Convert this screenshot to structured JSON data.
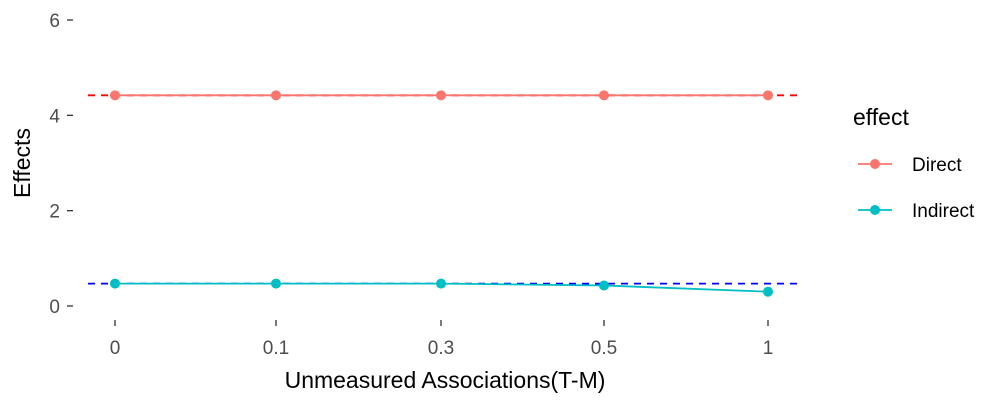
{
  "chart_data": {
    "type": "line",
    "categories": [
      "0",
      "0.1",
      "0.3",
      "0.5",
      "1"
    ],
    "series": [
      {
        "name": "Direct",
        "color": "#f8766d",
        "values": [
          4.42,
          4.42,
          4.42,
          4.42,
          4.42
        ]
      },
      {
        "name": "Indirect",
        "color": "#00bfc4",
        "values": [
          0.47,
          0.47,
          0.47,
          0.43,
          0.3
        ]
      }
    ],
    "reference_lines": [
      {
        "y": 4.42,
        "color": "#ff0000",
        "style": "dashed"
      },
      {
        "y": 0.47,
        "color": "#0000ff",
        "style": "dashed"
      }
    ],
    "xlabel": "Unmeasured Associations(T-M)",
    "ylabel": "Effects",
    "ylim": [
      0,
      6
    ],
    "yticks": [
      0,
      2,
      4,
      6
    ],
    "legend_title": "effect",
    "legend_position": "right",
    "grid": false
  }
}
